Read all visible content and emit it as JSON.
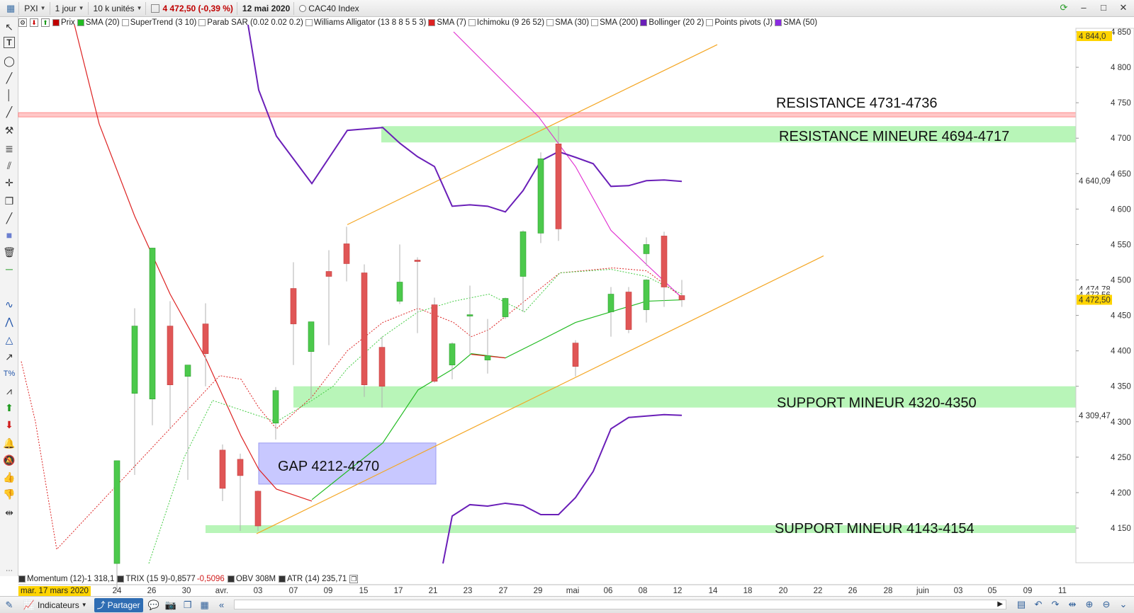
{
  "toolbar": {
    "symbol": "PXI",
    "period": "1 jour",
    "units": "10 k unités",
    "price": "4 472,50 (-0,39 %)",
    "date": "12 mai 2020",
    "index_name": "CAC40 Index"
  },
  "indicators": {
    "items": [
      {
        "label": "Prix",
        "color": "#c00000"
      },
      {
        "label": "SMA (20)",
        "color": "#22bb22"
      },
      {
        "label": "SuperTrend (3 10)",
        "color": "#ffffff"
      },
      {
        "label": "Parab SAR (0.02 0.02 0.2)",
        "color": "#ffffff"
      },
      {
        "label": "Williams Alligator (13 8 8 5 5 3)",
        "color": "#ffffff"
      },
      {
        "label": "SMA (7)",
        "color": "#dd2222"
      },
      {
        "label": "Ichimoku (9 26 52)",
        "color": "#ffffff"
      },
      {
        "label": "SMA (30)",
        "color": "#ffffff"
      },
      {
        "label": "SMA (200)",
        "color": "#ffffff"
      },
      {
        "label": "Bollinger (20 2)",
        "color": "#6a1fb8"
      },
      {
        "label": "Points pivots (J)",
        "color": "#ffffff"
      },
      {
        "label": "SMA (50)",
        "color": "#8a2be2"
      }
    ]
  },
  "subindicators": {
    "momentum": "Momentum (12)-1 318,1",
    "trix": "TRIX (15 9)-0,8577",
    "trix_val": "-0,5096",
    "obv": "OBV 308M",
    "atr": "ATR (14) 235,71"
  },
  "price_axis": {
    "ticks": [
      "4 850",
      "4 800",
      "4 750",
      "4 700",
      "4 650",
      "4 600",
      "4 550",
      "4 500",
      "4 450",
      "4 400",
      "4 350",
      "4 300",
      "4 250",
      "4 200",
      "4 150"
    ],
    "badge_top": "4 844,0",
    "badge_bb_upper": "4 640,09",
    "badge_last": "4 472,50",
    "badge_bb_lower": "4 309,47",
    "badge_small1": "4 474,78",
    "badge_small2": "4 472,56"
  },
  "x_axis": {
    "labels": [
      "24",
      "26",
      "30",
      "avr.",
      "03",
      "07",
      "09",
      "15",
      "17",
      "21",
      "23",
      "27",
      "29",
      "mai",
      "06",
      "08",
      "12",
      "14",
      "18",
      "20",
      "22",
      "26",
      "28",
      "juin",
      "03",
      "05",
      "09",
      "11"
    ],
    "cursor_date": "mar. 17 mars 2020"
  },
  "annotations": {
    "resistance": "RESISTANCE  4731-4736",
    "resistance_minor": "RESISTANCE MINEURE 4694-4717",
    "support_minor1": "SUPPORT MINEUR 4320-4350",
    "gap": "GAP 4212-4270",
    "support_minor2": "SUPPORT  MINEUR 4143-4154"
  },
  "bottom": {
    "indicators_label": "Indicateurs",
    "share_label": "Partager"
  },
  "chart_data": {
    "type": "candlestick",
    "title": "",
    "ylim": [
      4100,
      4860
    ],
    "candles": [
      {
        "x": "23",
        "o": 4100,
        "h": 4245,
        "l": 4060,
        "c": 4245,
        "dir": "up"
      },
      {
        "x": "24",
        "o": 4340,
        "h": 4460,
        "l": 4225,
        "c": 4435,
        "dir": "up"
      },
      {
        "x": "25",
        "o": 4332,
        "h": 4545,
        "l": 4295,
        "c": 4545,
        "dir": "up"
      },
      {
        "x": "26",
        "o": 4435,
        "h": 4470,
        "l": 4290,
        "c": 4352,
        "dir": "down"
      },
      {
        "x": "27",
        "o": 4364,
        "h": 4380,
        "l": 4218,
        "c": 4380,
        "dir": "up"
      },
      {
        "x": "30",
        "o": 4438,
        "h": 4467,
        "l": 4350,
        "c": 4396,
        "dir": "down"
      },
      {
        "x": "31",
        "o": 4260,
        "h": 4268,
        "l": 4188,
        "c": 4206,
        "dir": "down"
      },
      {
        "x": "01",
        "o": 4247,
        "h": 4255,
        "l": 4146,
        "c": 4224,
        "dir": "down"
      },
      {
        "x": "02",
        "o": 4202,
        "h": 4203,
        "l": 4146,
        "c": 4153,
        "dir": "down"
      },
      {
        "x": "03",
        "o": 4298,
        "h": 4349,
        "l": 4275,
        "c": 4344,
        "dir": "up"
      },
      {
        "x": "06",
        "o": 4488,
        "h": 4525,
        "l": 4380,
        "c": 4438,
        "dir": "down"
      },
      {
        "x": "07",
        "o": 4399,
        "h": 4440,
        "l": 4332,
        "c": 4441,
        "dir": "up"
      },
      {
        "x": "08",
        "o": 4512,
        "h": 4542,
        "l": 4408,
        "c": 4505,
        "dir": "down"
      },
      {
        "x": "09",
        "o": 4551,
        "h": 4575,
        "l": 4498,
        "c": 4523,
        "dir": "down"
      },
      {
        "x": "14",
        "o": 4510,
        "h": 4522,
        "l": 4335,
        "c": 4352,
        "dir": "down"
      },
      {
        "x": "15",
        "o": 4405,
        "h": 4420,
        "l": 4320,
        "c": 4350,
        "dir": "down"
      },
      {
        "x": "16",
        "o": 4470,
        "h": 4550,
        "l": 4466,
        "c": 4497,
        "dir": "up"
      },
      {
        "x": "17",
        "o": 4528,
        "h": 4532,
        "l": 4425,
        "c": 4527,
        "dir": "down"
      },
      {
        "x": "20",
        "o": 4465,
        "h": 4475,
        "l": 4355,
        "c": 4357,
        "dir": "down"
      },
      {
        "x": "21",
        "o": 4380,
        "h": 4412,
        "l": 4360,
        "c": 4410,
        "dir": "up"
      },
      {
        "x": "22",
        "o": 4451,
        "h": 4492,
        "l": 4395,
        "c": 4451,
        "dir": "up"
      },
      {
        "x": "23",
        "o": 4387,
        "h": 4445,
        "l": 4368,
        "c": 4393,
        "dir": "up"
      },
      {
        "x": "24",
        "o": 4448,
        "h": 4475,
        "l": 4445,
        "c": 4474,
        "dir": "up"
      },
      {
        "x": "27",
        "o": 4505,
        "h": 4570,
        "l": 4455,
        "c": 4568,
        "dir": "up"
      },
      {
        "x": "28",
        "o": 4566,
        "h": 4680,
        "l": 4552,
        "c": 4671,
        "dir": "up"
      },
      {
        "x": "29",
        "o": 4692,
        "h": 4717,
        "l": 4555,
        "c": 4572,
        "dir": "down"
      },
      {
        "x": "04",
        "o": 4411,
        "h": 4415,
        "l": 4364,
        "c": 4378,
        "dir": "down"
      },
      {
        "x": "05",
        "o": 4455,
        "h": 4490,
        "l": 4420,
        "c": 4480,
        "dir": "up"
      },
      {
        "x": "06",
        "o": 4483,
        "h": 4490,
        "l": 4425,
        "c": 4430,
        "dir": "down"
      },
      {
        "x": "07",
        "o": 4458,
        "h": 4501,
        "l": 4440,
        "c": 4500,
        "dir": "up"
      },
      {
        "x": "08",
        "o": 4537,
        "h": 4560,
        "l": 4520,
        "c": 4550,
        "dir": "up"
      },
      {
        "x": "11",
        "o": 4562,
        "h": 4568,
        "l": 4462,
        "c": 4490,
        "dir": "down"
      },
      {
        "x": "12",
        "o": 4478,
        "h": 4500,
        "l": 4462,
        "c": 4472,
        "dir": "down"
      }
    ]
  },
  "colors": {
    "up_candle": "#4cc94c",
    "down_candle": "#e05656",
    "zone_green": "#b8f5b8",
    "zone_red": "#ffc8c8",
    "gap_blue": "#c8c8ff",
    "trend_orange": "#f4a623",
    "bollinger": "#6a1fb8",
    "sma7": "#dd2222",
    "sma20": "#22bb22",
    "magenta": "#e02bd0"
  }
}
